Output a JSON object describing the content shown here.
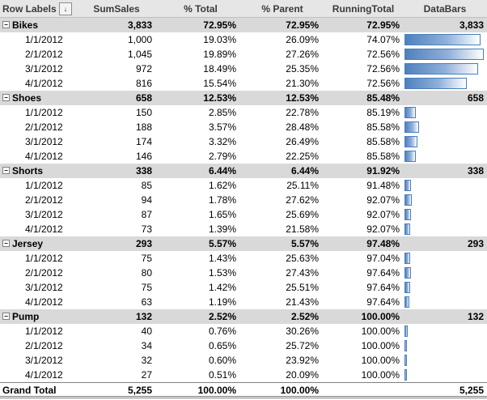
{
  "header": {
    "row_labels": "Row Labels",
    "sum_sales": "SumSales",
    "pct_total": "% Total",
    "pct_parent": "% Parent",
    "running_total": "RunningTotal",
    "data_bars": "DataBars",
    "filter_icon": "sort-filter-icon"
  },
  "groups": [
    {
      "name": "Bikes",
      "sum": "3,833",
      "pct_total": "72.95%",
      "pct_parent": "72.95%",
      "running": "72.95%",
      "bar_label": "3,833",
      "rows": [
        {
          "label": "1/1/2012",
          "sum": "1,000",
          "pct_total": "19.03%",
          "pct_parent": "26.09%",
          "running": "74.07%",
          "value": 1000
        },
        {
          "label": "2/1/2012",
          "sum": "1,045",
          "pct_total": "19.89%",
          "pct_parent": "27.26%",
          "running": "72.56%",
          "value": 1045
        },
        {
          "label": "3/1/2012",
          "sum": "972",
          "pct_total": "18.49%",
          "pct_parent": "25.35%",
          "running": "72.56%",
          "value": 972
        },
        {
          "label": "4/1/2012",
          "sum": "816",
          "pct_total": "15.54%",
          "pct_parent": "21.30%",
          "running": "72.56%",
          "value": 816
        }
      ]
    },
    {
      "name": "Shoes",
      "sum": "658",
      "pct_total": "12.53%",
      "pct_parent": "12.53%",
      "running": "85.48%",
      "bar_label": "658",
      "rows": [
        {
          "label": "1/1/2012",
          "sum": "150",
          "pct_total": "2.85%",
          "pct_parent": "22.78%",
          "running": "85.19%",
          "value": 150
        },
        {
          "label": "2/1/2012",
          "sum": "188",
          "pct_total": "3.57%",
          "pct_parent": "28.48%",
          "running": "85.58%",
          "value": 188
        },
        {
          "label": "3/1/2012",
          "sum": "174",
          "pct_total": "3.32%",
          "pct_parent": "26.49%",
          "running": "85.58%",
          "value": 174
        },
        {
          "label": "4/1/2012",
          "sum": "146",
          "pct_total": "2.79%",
          "pct_parent": "22.25%",
          "running": "85.58%",
          "value": 146
        }
      ]
    },
    {
      "name": "Shorts",
      "sum": "338",
      "pct_total": "6.44%",
      "pct_parent": "6.44%",
      "running": "91.92%",
      "bar_label": "338",
      "rows": [
        {
          "label": "1/1/2012",
          "sum": "85",
          "pct_total": "1.62%",
          "pct_parent": "25.11%",
          "running": "91.48%",
          "value": 85
        },
        {
          "label": "2/1/2012",
          "sum": "94",
          "pct_total": "1.78%",
          "pct_parent": "27.62%",
          "running": "92.07%",
          "value": 94
        },
        {
          "label": "3/1/2012",
          "sum": "87",
          "pct_total": "1.65%",
          "pct_parent": "25.69%",
          "running": "92.07%",
          "value": 87
        },
        {
          "label": "4/1/2012",
          "sum": "73",
          "pct_total": "1.39%",
          "pct_parent": "21.58%",
          "running": "92.07%",
          "value": 73
        }
      ]
    },
    {
      "name": "Jersey",
      "sum": "293",
      "pct_total": "5.57%",
      "pct_parent": "5.57%",
      "running": "97.48%",
      "bar_label": "293",
      "rows": [
        {
          "label": "1/1/2012",
          "sum": "75",
          "pct_total": "1.43%",
          "pct_parent": "25.63%",
          "running": "97.04%",
          "value": 75
        },
        {
          "label": "2/1/2012",
          "sum": "80",
          "pct_total": "1.53%",
          "pct_parent": "27.43%",
          "running": "97.64%",
          "value": 80
        },
        {
          "label": "3/1/2012",
          "sum": "75",
          "pct_total": "1.42%",
          "pct_parent": "25.51%",
          "running": "97.64%",
          "value": 75
        },
        {
          "label": "4/1/2012",
          "sum": "63",
          "pct_total": "1.19%",
          "pct_parent": "21.43%",
          "running": "97.64%",
          "value": 63
        }
      ]
    },
    {
      "name": "Pump",
      "sum": "132",
      "pct_total": "2.52%",
      "pct_parent": "2.52%",
      "running": "100.00%",
      "bar_label": "132",
      "rows": [
        {
          "label": "1/1/2012",
          "sum": "40",
          "pct_total": "0.76%",
          "pct_parent": "30.26%",
          "running": "100.00%",
          "value": 40
        },
        {
          "label": "2/1/2012",
          "sum": "34",
          "pct_total": "0.65%",
          "pct_parent": "25.72%",
          "running": "100.00%",
          "value": 34
        },
        {
          "label": "3/1/2012",
          "sum": "32",
          "pct_total": "0.60%",
          "pct_parent": "23.92%",
          "running": "100.00%",
          "value": 32
        },
        {
          "label": "4/1/2012",
          "sum": "27",
          "pct_total": "0.51%",
          "pct_parent": "20.09%",
          "running": "100.00%",
          "value": 27
        }
      ]
    }
  ],
  "grand_total": {
    "label": "Grand Total",
    "sum": "5,255",
    "pct_total": "100.00%",
    "pct_parent": "100.00%",
    "bar_label": "5,255"
  },
  "colors": {
    "bar": "#4f81bd",
    "group_bg": "#d9d9d9",
    "header_bg": "#e6e6e6"
  }
}
